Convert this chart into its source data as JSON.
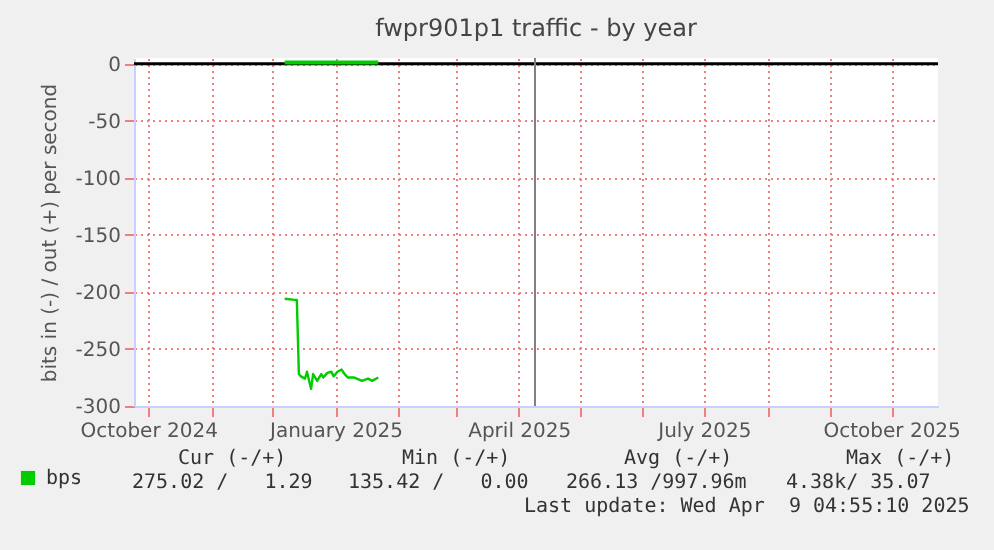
{
  "chart_data": {
    "type": "line",
    "title": "fwpr901p1 traffic - by year",
    "ylabel": "bits in (-) / out (+) per second",
    "xlim": [
      "2024-09-24",
      "2025-10-24"
    ],
    "xticks": [
      {
        "value": "2024-10-01",
        "label": "October 2024"
      },
      {
        "value": "2024-11-01",
        "label": null
      },
      {
        "value": "2024-12-01",
        "label": null
      },
      {
        "value": "2025-01-01",
        "label": "January 2025"
      },
      {
        "value": "2025-02-01",
        "label": null
      },
      {
        "value": "2025-03-01",
        "label": null
      },
      {
        "value": "2025-04-01",
        "label": "April 2025"
      },
      {
        "value": "2025-05-01",
        "label": null
      },
      {
        "value": "2025-06-01",
        "label": null
      },
      {
        "value": "2025-07-01",
        "label": "July 2025"
      },
      {
        "value": "2025-08-01",
        "label": null
      },
      {
        "value": "2025-09-01",
        "label": null
      },
      {
        "value": "2025-10-01",
        "label": "October 2025"
      }
    ],
    "ylim": [
      -300,
      5
    ],
    "yticks": [
      -300,
      -250,
      -200,
      -150,
      -100,
      -50,
      0
    ],
    "grid": true,
    "legend": "bottom left",
    "series": [
      {
        "name": "bps",
        "color": "#00cc00",
        "x": [
          "2024-12-07",
          "2024-12-12",
          "2024-12-13",
          "2024-12-14",
          "2024-12-15",
          "2024-12-17",
          "2024-12-18",
          "2024-12-20",
          "2024-12-21",
          "2024-12-23",
          "2024-12-25",
          "2024-12-26",
          "2024-12-28",
          "2024-12-30",
          "2024-12-31",
          "2025-01-02",
          "2025-01-04",
          "2025-01-05",
          "2025-01-07",
          "2025-01-10",
          "2025-01-14",
          "2025-01-17",
          "2025-01-19",
          "2025-01-22"
        ],
        "values": [
          -206,
          -207,
          -207,
          -272,
          -274,
          -276,
          -270,
          -285,
          -272,
          -278,
          -272,
          -275,
          -271,
          -270,
          -274,
          -270,
          -268,
          -271,
          -275,
          -275,
          -278,
          -276,
          -278,
          -275
        ]
      },
      {
        "color": "#00cc00",
        "x": [
          "2024-12-07",
          "2024-12-20",
          "2025-01-05",
          "2025-01-22"
        ],
        "values": [
          1,
          1,
          1,
          1
        ]
      }
    ],
    "ref_lines": [
      {
        "axis": "y",
        "value": 0,
        "color": "#000000"
      },
      {
        "axis": "x",
        "value": "2025-04-09",
        "color": "#808080"
      }
    ],
    "annotations": [
      "Cur (-/+)",
      "Min (-/+)",
      "Avg (-/+)",
      "Max (-/+)",
      "275.02 /   1.29",
      "135.42 /   0.00",
      "266.13 /997.96m",
      "4.38k/ 35.07",
      "Last update: Wed Apr  9 04:55:10 2025"
    ]
  }
}
